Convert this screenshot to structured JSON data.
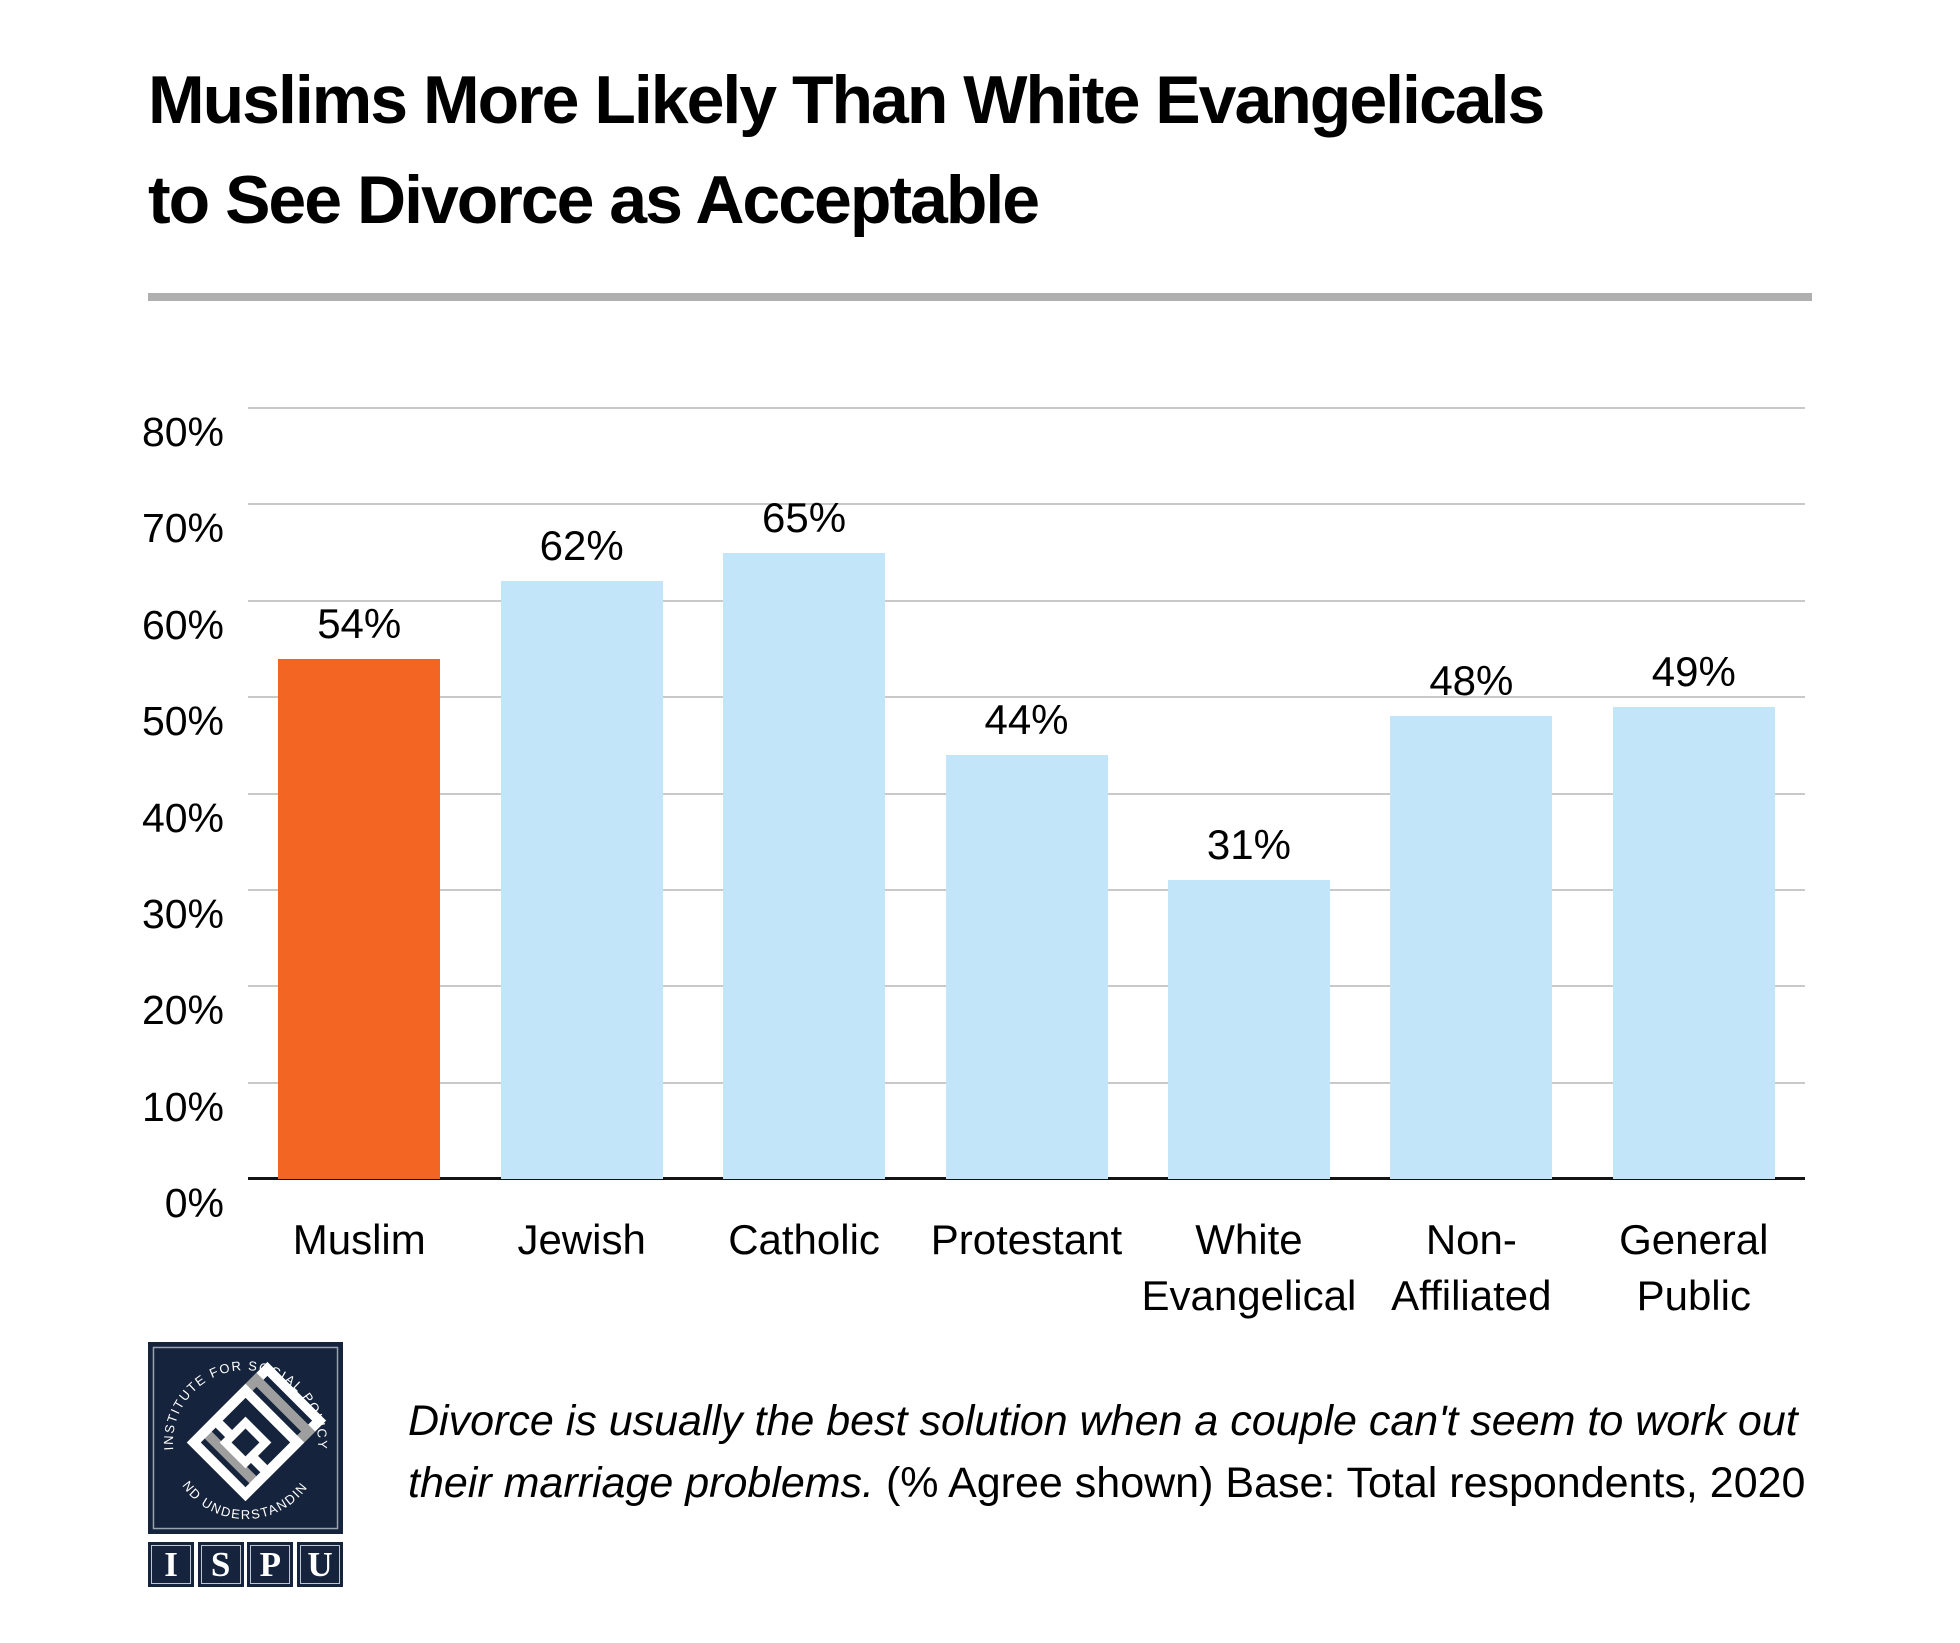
{
  "title": {
    "line1": "Muslims More Likely Than White Evangelicals",
    "line2": "to See Divorce as Acceptable"
  },
  "chart_data": {
    "type": "bar",
    "title": "Muslims More Likely Than White Evangelicals to See Divorce as Acceptable",
    "categories": [
      "Muslim",
      "Jewish",
      "Catholic",
      "Protestant",
      "White\nEvangelical",
      "Non-\nAffiliated",
      "General\nPublic"
    ],
    "values": [
      54,
      62,
      65,
      44,
      31,
      48,
      49
    ],
    "value_labels": [
      "54%",
      "62%",
      "65%",
      "44%",
      "31%",
      "48%",
      "49%"
    ],
    "ylim": [
      0,
      80
    ],
    "ytick_step": 10,
    "ytick_labels": [
      "0%",
      "10%",
      "20%",
      "30%",
      "40%",
      "50%",
      "60%",
      "70%",
      "80%"
    ],
    "grid": true,
    "legend": "none",
    "highlight_index": 0,
    "highlight_color": "#F26522",
    "bar_color": "#C3E5F9",
    "gridline_color": "#C9C9C9",
    "xlabel": "",
    "ylabel": ""
  },
  "footnote": {
    "question_italic": "Divorce is usually the best solution when a couple can't seem to work out their marriage problems.",
    "suffix_regular": " (% Agree shown) Base: Total respondents, 2020"
  },
  "logo": {
    "arc_top": "INSTITUTE FOR SOCIAL POLICY",
    "arc_bottom": "AND UNDERSTANDING",
    "letters": [
      "I",
      "S",
      "P",
      "U"
    ],
    "navy": "#15243c",
    "gray": "#9e9e9e"
  }
}
